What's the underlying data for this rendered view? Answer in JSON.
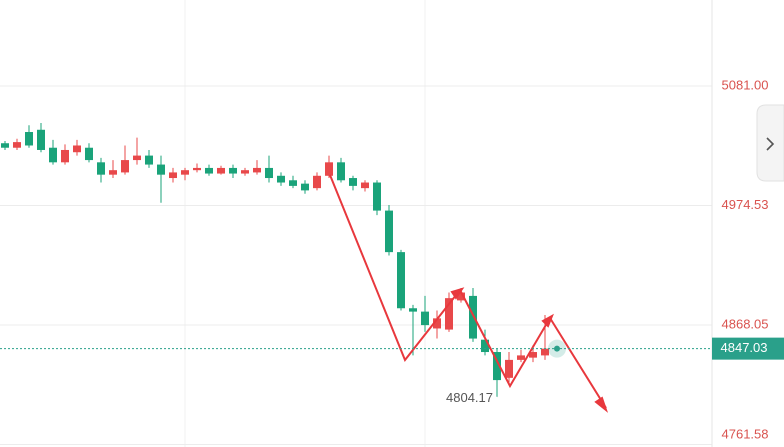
{
  "chart_data": {
    "type": "candlestick",
    "up_color": "#e8484a",
    "down_color": "#1aa37a",
    "ylim": [
      4759.4,
      5157.6
    ],
    "yticks": [
      {
        "value": 5081,
        "label": "5081.00"
      },
      4974.53,
      4868.05,
      4761.58
    ],
    "grid": true,
    "open": [
      5030,
      5026,
      5040,
      5042,
      5026,
      5013,
      5022,
      5026,
      5013,
      5002,
      5004,
      5015,
      5019,
      5011,
      4999,
      5002,
      5006,
      5008,
      5003,
      5008,
      5003,
      5004,
      5008,
      5001,
      4997,
      4994,
      4990,
      5001,
      5013,
      4999,
      4990,
      4995,
      4970,
      4933,
      4883,
      4880,
      4865,
      4864,
      4890,
      4894,
      4855,
      4844,
      4821,
      4837,
      4839,
      4841
    ],
    "high": [
      5032,
      5034,
      5046,
      5048,
      5033,
      5029,
      5033,
      5030,
      5017,
      5015,
      5028,
      5035,
      5024,
      5019,
      5008,
      5008,
      5012,
      5011,
      5010,
      5011,
      5008,
      5015,
      5019,
      5004,
      5001,
      4997,
      5004,
      5019,
      5017,
      5001,
      4997,
      4997,
      4975,
      4935,
      4886,
      4894,
      4881,
      4897,
      4901,
      4901,
      4864,
      4847,
      4844,
      4846,
      4850,
      4877
    ],
    "low": [
      5024,
      5024,
      5026,
      5022,
      5011,
      5011,
      5019,
      5013,
      4995,
      4999,
      5002,
      5011,
      5008,
      4977,
      4995,
      4997,
      5004,
      5001,
      5002,
      4999,
      5001,
      5002,
      4995,
      4992,
      4990,
      4985,
      4988,
      4999,
      4995,
      4988,
      4987,
      4966,
      4930,
      4881,
      4841,
      4862,
      4856,
      4862,
      4888,
      4853,
      4841,
      4804.17,
      4817,
      4835,
      4835,
      4837
    ],
    "close": [
      5026,
      5031,
      5028,
      5024,
      5013,
      5024,
      5028,
      5015,
      5002,
      5006,
      5015,
      5019,
      5011,
      5002,
      5004,
      5006,
      5008,
      5003,
      5008,
      5003,
      5006,
      5008,
      4999,
      4995,
      4992,
      4988,
      5001,
      5013,
      4997,
      4992,
      4995,
      4970,
      4933,
      4883,
      4880,
      4868,
      4874,
      4892,
      4897,
      4856,
      4844,
      4819,
      4837,
      4841,
      4844,
      4847.03
    ]
  }
}
